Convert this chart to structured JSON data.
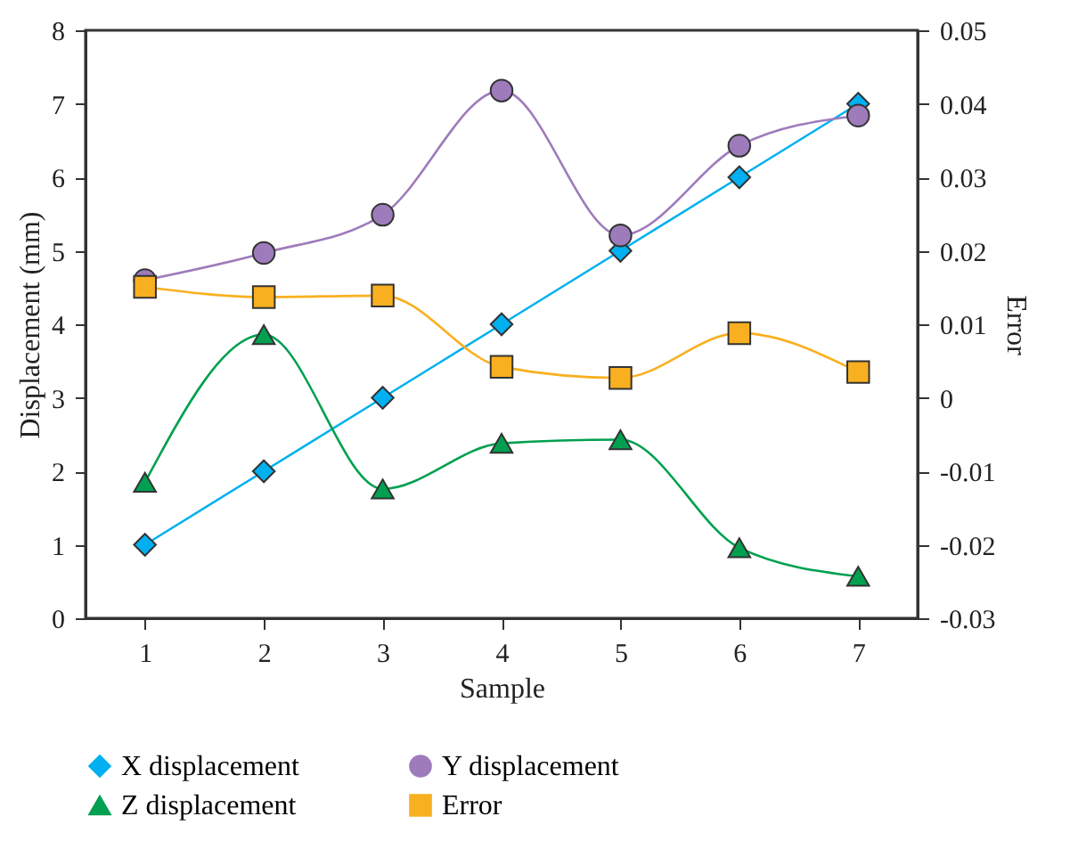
{
  "chart_data": {
    "type": "line",
    "xlabel": "Sample",
    "ylabel": "Displacement (mm)",
    "y2label": "Error",
    "x": [
      1,
      2,
      3,
      4,
      5,
      6,
      7
    ],
    "series": [
      {
        "name": "X displacement",
        "color": "#00b0f0",
        "marker": "diamond",
        "values": [
          1,
          2,
          3,
          4,
          5,
          6,
          7
        ]
      },
      {
        "name": "Y displacement",
        "color": "#9e7bbb",
        "marker": "circle",
        "values": [
          4.6,
          4.97,
          5.49,
          7.18,
          5.21,
          6.43,
          6.84
        ]
      },
      {
        "name": "Z displacement",
        "color": "#00a050",
        "marker": "triangle",
        "values": [
          1.85,
          3.86,
          1.76,
          2.38,
          2.43,
          0.96,
          0.57
        ]
      },
      {
        "name": "Error",
        "color": "#f9b020",
        "marker": "square",
        "axis": "y2",
        "values": [
          0.0151,
          0.0137,
          0.0139,
          0.0042,
          0.0027,
          0.0088,
          0.0035
        ]
      }
    ],
    "xlim": [
      0.5,
      7.5
    ],
    "xticks": [
      1,
      2,
      3,
      4,
      5,
      6,
      7
    ],
    "ylim": [
      0,
      8
    ],
    "yticks": [
      0,
      1,
      2,
      3,
      4,
      5,
      6,
      7,
      8
    ],
    "y2lim": [
      -0.03,
      0.05
    ],
    "y2ticks": [
      -0.03,
      -0.02,
      -0.01,
      0,
      0.01,
      0.02,
      0.03,
      0.04,
      0.05
    ],
    "grid": false,
    "legend": "bottom"
  }
}
